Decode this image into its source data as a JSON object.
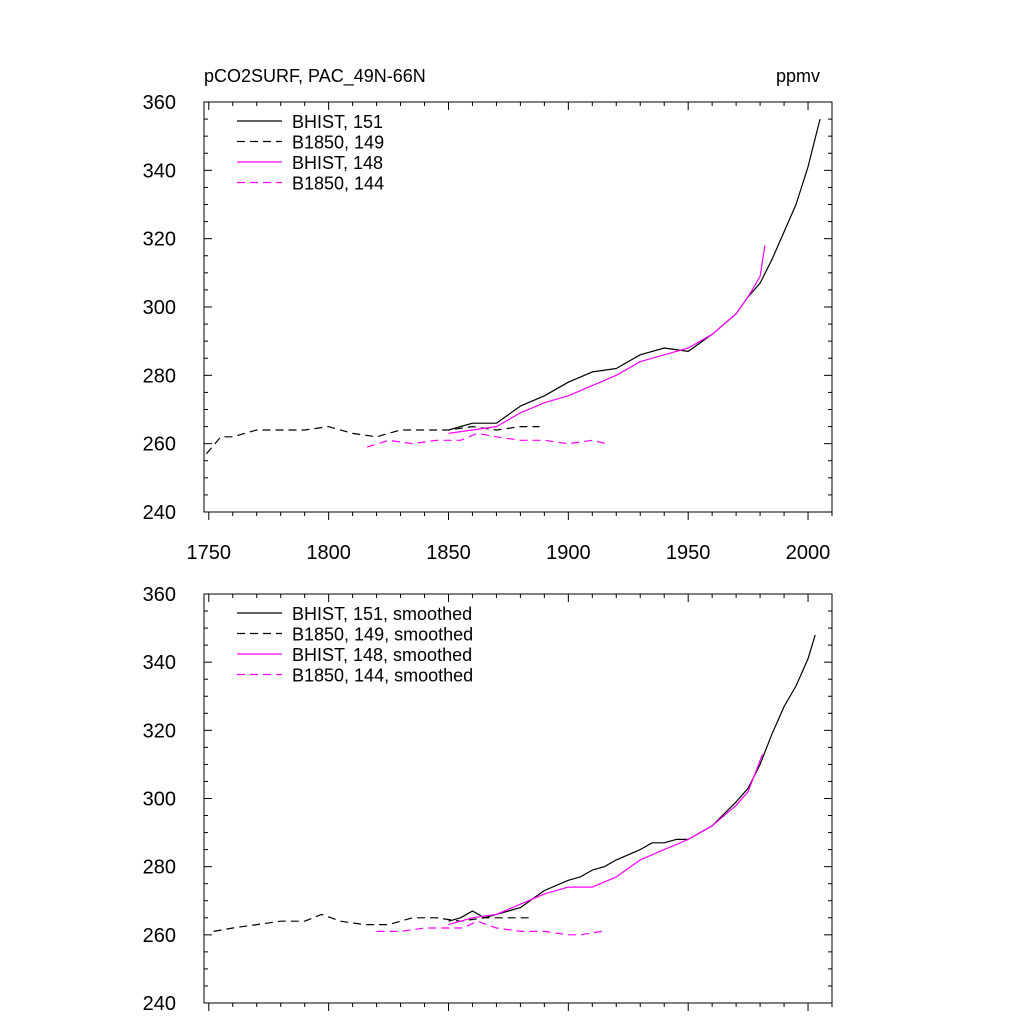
{
  "chart_data": [
    {
      "type": "line",
      "title_left": "pCO2SURF, PAC_49N-66N",
      "title_right": "ppmv",
      "xlim": [
        1748,
        2010
      ],
      "ylim": [
        240,
        360
      ],
      "x_ticks": [
        1750,
        1800,
        1850,
        1900,
        1950,
        2000
      ],
      "y_ticks": [
        240,
        260,
        280,
        300,
        320,
        340,
        360
      ],
      "x_tick_labels_shown": true,
      "legend_position": "top-left",
      "series": [
        {
          "name": "BHIST, 151",
          "color": "#000000",
          "dash": "solid",
          "x": [
            1850,
            1860,
            1870,
            1880,
            1890,
            1900,
            1910,
            1920,
            1930,
            1940,
            1950,
            1960,
            1970,
            1975,
            1980,
            1985,
            1990,
            1995,
            2000,
            2005
          ],
          "y": [
            264,
            266,
            266,
            271,
            274,
            278,
            281,
            282,
            286,
            288,
            287,
            292,
            298,
            303,
            307,
            314,
            322,
            330,
            341,
            355
          ]
        },
        {
          "name": "B1850, 149",
          "color": "#000000",
          "dash": "dashed",
          "x": [
            1749,
            1755,
            1760,
            1770,
            1780,
            1790,
            1800,
            1810,
            1820,
            1830,
            1840,
            1850,
            1860,
            1870,
            1880,
            1888
          ],
          "y": [
            257,
            262,
            262,
            264,
            264,
            264,
            265,
            263,
            262,
            264,
            264,
            264,
            265,
            264,
            265,
            265
          ]
        },
        {
          "name": "BHIST, 148",
          "color": "#ff00ff",
          "dash": "solid",
          "x": [
            1850,
            1860,
            1870,
            1880,
            1890,
            1900,
            1910,
            1920,
            1930,
            1940,
            1950,
            1960,
            1970,
            1975,
            1980,
            1982
          ],
          "y": [
            263,
            264,
            265,
            269,
            272,
            274,
            277,
            280,
            284,
            286,
            288,
            292,
            298,
            303,
            309,
            318
          ]
        },
        {
          "name": "B1850, 144",
          "color": "#ff00ff",
          "dash": "dashed",
          "x": [
            1816,
            1825,
            1835,
            1845,
            1855,
            1862,
            1870,
            1880,
            1890,
            1900,
            1910,
            1916
          ],
          "y": [
            259,
            261,
            260,
            261,
            261,
            263,
            262,
            261,
            261,
            260,
            261,
            260
          ]
        }
      ]
    },
    {
      "type": "line",
      "xlim": [
        1748,
        2010
      ],
      "ylim": [
        240,
        360
      ],
      "x_ticks": [
        1750,
        1800,
        1850,
        1900,
        1950,
        2000
      ],
      "y_ticks": [
        240,
        260,
        280,
        300,
        320,
        340,
        360
      ],
      "x_tick_labels_shown": false,
      "legend_position": "top-left",
      "series": [
        {
          "name": "BHIST, 151, smoothed",
          "color": "#000000",
          "dash": "solid",
          "x": [
            1850,
            1855,
            1860,
            1865,
            1870,
            1875,
            1880,
            1890,
            1900,
            1905,
            1910,
            1915,
            1920,
            1930,
            1935,
            1940,
            1945,
            1950,
            1960,
            1970,
            1975,
            1980,
            1985,
            1990,
            1995,
            2000,
            2003
          ],
          "y": [
            264,
            265,
            267,
            265,
            266,
            267,
            268,
            273,
            276,
            277,
            279,
            280,
            282,
            285,
            287,
            287,
            288,
            288,
            292,
            299,
            303,
            310,
            319,
            327,
            333,
            341,
            348
          ]
        },
        {
          "name": "B1850, 149, smoothed",
          "color": "#000000",
          "dash": "dashed",
          "x": [
            1752,
            1760,
            1770,
            1780,
            1790,
            1797,
            1805,
            1815,
            1825,
            1835,
            1845,
            1855,
            1865,
            1875,
            1885
          ],
          "y": [
            261,
            262,
            263,
            264,
            264,
            266,
            264,
            263,
            263,
            265,
            265,
            264,
            265,
            265,
            265
          ]
        },
        {
          "name": "BHIST, 148, smoothed",
          "color": "#ff00ff",
          "dash": "solid",
          "x": [
            1850,
            1860,
            1870,
            1880,
            1890,
            1900,
            1910,
            1920,
            1930,
            1940,
            1950,
            1960,
            1970,
            1975,
            1981
          ],
          "y": [
            263,
            265,
            266,
            269,
            272,
            274,
            274,
            277,
            282,
            285,
            288,
            292,
            298,
            302,
            313
          ]
        },
        {
          "name": "B1850, 144, smoothed",
          "color": "#ff00ff",
          "dash": "dashed",
          "x": [
            1820,
            1830,
            1840,
            1850,
            1856,
            1862,
            1870,
            1880,
            1890,
            1900,
            1905,
            1914
          ],
          "y": [
            261,
            261,
            262,
            262,
            262,
            264,
            262,
            261,
            261,
            260,
            260,
            261
          ]
        }
      ]
    }
  ]
}
